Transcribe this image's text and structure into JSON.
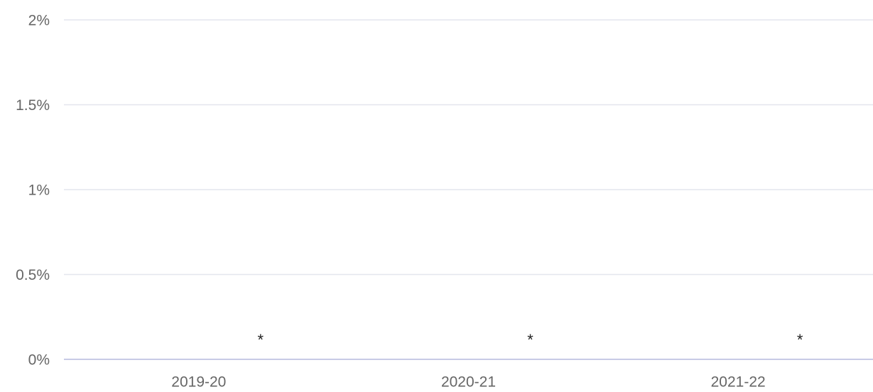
{
  "chart_data": {
    "type": "bar",
    "categories": [
      "2019-20",
      "2020-21",
      "2021-22"
    ],
    "values": [
      null,
      null,
      null
    ],
    "value_labels": [
      "*",
      "*",
      "*"
    ],
    "color": "#4a6fd1",
    "ylim": [
      0,
      2
    ],
    "yticks": [
      {
        "value": 0,
        "label": "0%"
      },
      {
        "value": 0.5,
        "label": "0.5%"
      },
      {
        "value": 1,
        "label": "1%"
      },
      {
        "value": 1.5,
        "label": "1.5%"
      },
      {
        "value": 2,
        "label": "2%"
      }
    ],
    "grid": true
  }
}
